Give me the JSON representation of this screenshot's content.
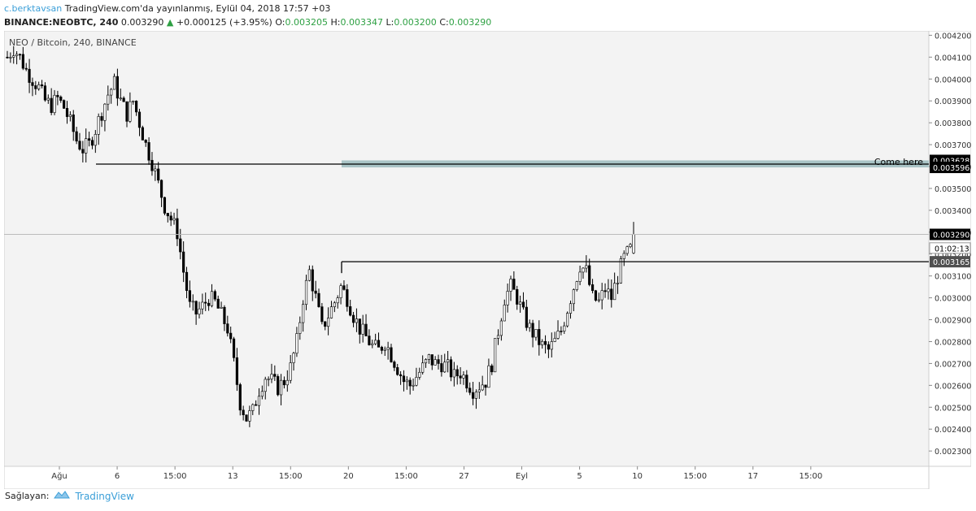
{
  "header": {
    "author": "c.berktavsan",
    "publish_text": "TradingView.com'da yayınlanmış, Eylül 04, 2018 17:57 +03",
    "symbol": "BINANCE:NEOBTC, 240",
    "last": "0.003290",
    "change_arrow": "▲",
    "change": "+0.000125 (+3.95%)",
    "o_label": "O:",
    "o_value": "0.003205",
    "h_label": "H:",
    "h_value": "0.003347",
    "l_label": "L:",
    "l_value": "0.003200",
    "c_label": "C:",
    "c_value": "0.003290"
  },
  "chart": {
    "legend": "NEO / Bitcoin, 240, BINANCE",
    "annotation": "Come here",
    "countdown": "01:02:13",
    "price_tags": {
      "zone_top": "0.003628",
      "zone_bottom": "0.003596",
      "last_price": "0.003290",
      "resistance": "0.003165"
    }
  },
  "chart_data": {
    "type": "candlestick",
    "symbol": "NEO / Bitcoin",
    "interval": "240",
    "exchange": "BINANCE",
    "ylim": [
      0.00223,
      0.00422
    ],
    "y_ticks": [
      "0.004200",
      "0.004100",
      "0.004000",
      "0.003900",
      "0.003800",
      "0.003700",
      "0.003600",
      "0.003500",
      "0.003400",
      "0.003300",
      "0.003200",
      "0.003100",
      "0.003000",
      "0.002900",
      "0.002800",
      "0.002700",
      "0.002600",
      "0.002500",
      "0.002400",
      "0.002300"
    ],
    "x_ticks": [
      "Ağu",
      "6",
      "15:00",
      "13",
      "15:00",
      "20",
      "15:00",
      "27",
      "Eyl",
      "5",
      "10",
      "15:00",
      "17",
      "15:00"
    ],
    "price_path": [
      [
        0,
        0.0041
      ],
      [
        2,
        0.00414
      ],
      [
        4,
        0.0041
      ],
      [
        6,
        0.00404
      ],
      [
        8,
        0.004
      ],
      [
        10,
        0.00396
      ],
      [
        12,
        0.0039
      ],
      [
        14,
        0.00388
      ],
      [
        16,
        0.00391
      ],
      [
        18,
        0.00387
      ],
      [
        20,
        0.0038
      ],
      [
        22,
        0.00372
      ],
      [
        24,
        0.00368
      ],
      [
        26,
        0.0037
      ],
      [
        28,
        0.00377
      ],
      [
        30,
        0.00385
      ],
      [
        32,
        0.00393
      ],
      [
        34,
        0.00398
      ],
      [
        36,
        0.0039
      ],
      [
        38,
        0.00384
      ],
      [
        40,
        0.0039
      ],
      [
        42,
        0.0038
      ],
      [
        44,
        0.0037
      ],
      [
        46,
        0.00362
      ],
      [
        48,
        0.00352
      ],
      [
        50,
        0.00342
      ],
      [
        52,
        0.00336
      ],
      [
        54,
        0.0033
      ],
      [
        56,
        0.00312
      ],
      [
        58,
        0.00296
      ],
      [
        60,
        0.00293
      ],
      [
        62,
        0.00296
      ],
      [
        64,
        0.003
      ],
      [
        66,
        0.00298
      ],
      [
        68,
        0.00292
      ],
      [
        70,
        0.00286
      ],
      [
        72,
        0.0027
      ],
      [
        74,
        0.00252
      ],
      [
        76,
        0.00245
      ],
      [
        78,
        0.00248
      ],
      [
        80,
        0.00258
      ],
      [
        82,
        0.00264
      ],
      [
        84,
        0.00262
      ],
      [
        86,
        0.00259
      ],
      [
        88,
        0.00262
      ],
      [
        90,
        0.00268
      ],
      [
        92,
        0.0028
      ],
      [
        94,
        0.003
      ],
      [
        96,
        0.00312
      ],
      [
        98,
        0.003
      ],
      [
        100,
        0.00286
      ],
      [
        102,
        0.00292
      ],
      [
        104,
        0.00298
      ],
      [
        106,
        0.00305
      ],
      [
        108,
        0.003
      ],
      [
        110,
        0.00292
      ],
      [
        112,
        0.00286
      ],
      [
        114,
        0.00282
      ],
      [
        116,
        0.00278
      ],
      [
        118,
        0.00276
      ],
      [
        120,
        0.0028
      ],
      [
        122,
        0.00274
      ],
      [
        124,
        0.00268
      ],
      [
        126,
        0.00262
      ],
      [
        128,
        0.0026
      ],
      [
        130,
        0.00264
      ],
      [
        132,
        0.00268
      ],
      [
        134,
        0.00272
      ],
      [
        136,
        0.0027
      ],
      [
        138,
        0.0027
      ],
      [
        140,
        0.00268
      ],
      [
        142,
        0.00264
      ],
      [
        144,
        0.00266
      ],
      [
        146,
        0.00262
      ],
      [
        148,
        0.00258
      ],
      [
        150,
        0.0026
      ],
      [
        152,
        0.00262
      ],
      [
        154,
        0.0027
      ],
      [
        156,
        0.00285
      ],
      [
        158,
        0.003
      ],
      [
        160,
        0.00305
      ],
      [
        162,
        0.003
      ],
      [
        164,
        0.00292
      ],
      [
        166,
        0.00286
      ],
      [
        168,
        0.00282
      ],
      [
        170,
        0.00278
      ],
      [
        172,
        0.00276
      ],
      [
        174,
        0.0028
      ],
      [
        176,
        0.00285
      ],
      [
        178,
        0.00295
      ],
      [
        180,
        0.00305
      ],
      [
        182,
        0.00315
      ],
      [
        184,
        0.00312
      ],
      [
        186,
        0.003
      ],
      [
        188,
        0.00298
      ],
      [
        190,
        0.00304
      ],
      [
        192,
        0.003
      ],
      [
        194,
        0.0031
      ],
      [
        196,
        0.00318
      ],
      [
        198,
        0.00322
      ]
    ],
    "last_candle": {
      "open": 0.003205,
      "high": 0.003347,
      "low": 0.0032,
      "close": 0.00329
    },
    "levels": [
      {
        "price": 0.003628,
        "kind": "zone_top"
      },
      {
        "price": 0.003596,
        "kind": "zone_bottom"
      },
      {
        "price": 0.003611,
        "kind": "support_line"
      },
      {
        "price": 0.003165,
        "kind": "resistance_line"
      },
      {
        "price": 0.00329,
        "kind": "last_price"
      }
    ],
    "annotations": [
      "Come here"
    ]
  },
  "footer": {
    "provider_label": "Sağlayan:",
    "brand": "TradingView"
  },
  "colors": {
    "plot_bg": "#f3f3f3",
    "zone": "#a9c4c6",
    "candle": "#000000",
    "tag_bg": "#000000",
    "accent_blue": "#3b9fd8",
    "green": "#2ea043"
  }
}
